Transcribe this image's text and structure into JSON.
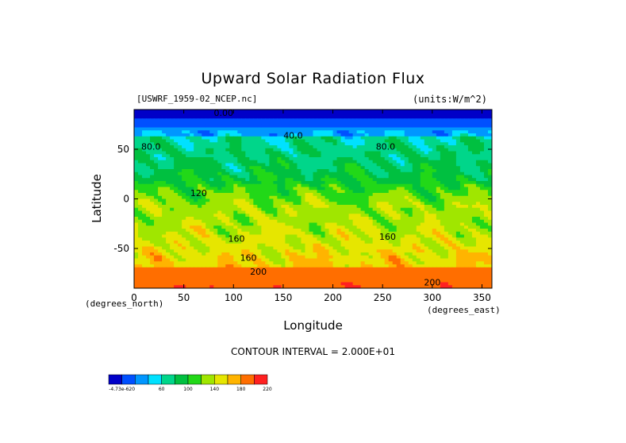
{
  "chart_data": {
    "type": "heatmap",
    "title": "Upward Solar Radiation Flux",
    "dataset_label": "[USWRF_1959-02_NCEP.nc]",
    "units_label": "(units:W/m^2)",
    "xlabel": "Longitude",
    "ylabel": "Latitude",
    "x_units_label": "(degrees_east)",
    "y_units_label": "(degrees_north)",
    "xlim": [
      0,
      360
    ],
    "ylim": [
      -90,
      90
    ],
    "x_ticks": [
      "0",
      "50",
      "100",
      "150",
      "200",
      "250",
      "300",
      "350"
    ],
    "x_tick_values": [
      0,
      50,
      100,
      150,
      200,
      250,
      300,
      350
    ],
    "y_ticks": [
      "50",
      "0",
      "-50"
    ],
    "y_tick_values": [
      50,
      0,
      -50
    ],
    "contour_interval_text": "CONTOUR INTERVAL = 2.000E+01",
    "colorbar_labels": [
      "-4.73e-620",
      "60",
      "100",
      "140",
      "180",
      "220"
    ],
    "colorbar_levels": [
      0,
      20,
      40,
      60,
      80,
      100,
      120,
      140,
      160,
      180,
      200,
      220
    ],
    "colorbar_colors": [
      "#0000c8",
      "#0050ff",
      "#0096ff",
      "#00e1ff",
      "#00d68a",
      "#00c040",
      "#22d818",
      "#a0e600",
      "#e6e600",
      "#ffb400",
      "#ff6e00",
      "#ff2020"
    ],
    "contour_labels": [
      {
        "text": "0.00",
        "lon": 90,
        "lat": 87
      },
      {
        "text": "40.0",
        "lon": 160,
        "lat": 64
      },
      {
        "text": "80.0",
        "lon": 17,
        "lat": 53
      },
      {
        "text": "80.0",
        "lon": 253,
        "lat": 53
      },
      {
        "text": "120",
        "lon": 65,
        "lat": 6
      },
      {
        "text": "160",
        "lon": 103,
        "lat": -40
      },
      {
        "text": "160",
        "lon": 115,
        "lat": -59
      },
      {
        "text": "200",
        "lon": 125,
        "lat": -73
      },
      {
        "text": "200",
        "lon": 300,
        "lat": -84
      },
      {
        "text": "160",
        "lon": 255,
        "lat": -38
      }
    ]
  }
}
